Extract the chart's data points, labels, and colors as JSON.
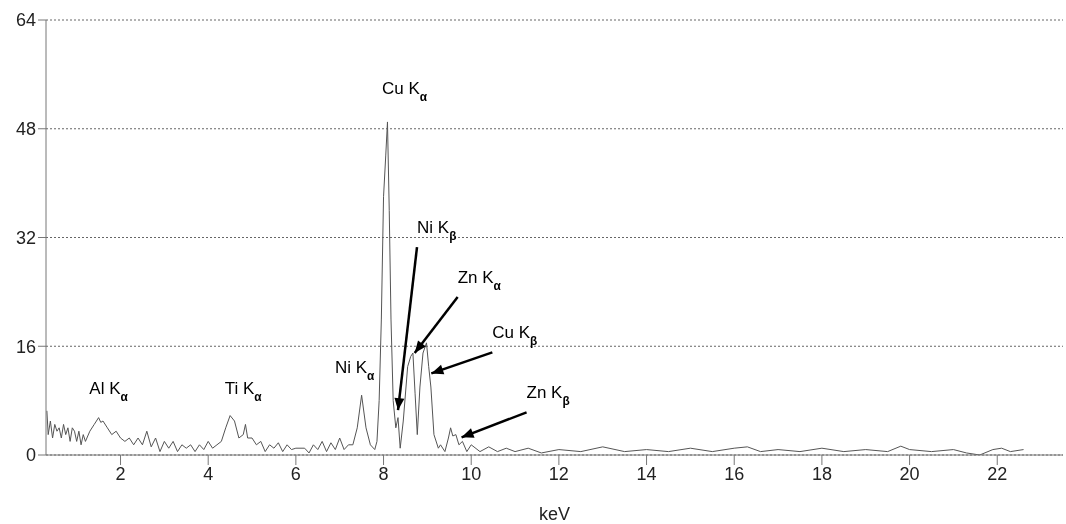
{
  "chart_data": {
    "type": "line",
    "xlabel": "keV",
    "x": [
      0.32,
      0.35,
      0.4,
      0.45,
      0.5,
      0.55,
      0.6,
      0.65,
      0.7,
      0.75,
      0.8,
      0.85,
      0.9,
      0.95,
      1.0,
      1.05,
      1.1,
      1.15,
      1.2,
      1.3,
      1.4,
      1.5,
      1.55,
      1.6,
      1.7,
      1.8,
      1.9,
      2.0,
      2.1,
      2.2,
      2.3,
      2.4,
      2.5,
      2.6,
      2.7,
      2.8,
      2.9,
      3.0,
      3.1,
      3.2,
      3.3,
      3.4,
      3.5,
      3.6,
      3.7,
      3.8,
      3.9,
      4.0,
      4.1,
      4.2,
      4.3,
      4.4,
      4.5,
      4.6,
      4.7,
      4.8,
      4.85,
      4.9,
      5.0,
      5.1,
      5.2,
      5.3,
      5.4,
      5.5,
      5.6,
      5.7,
      5.8,
      5.9,
      6.0,
      6.2,
      6.3,
      6.4,
      6.5,
      6.6,
      6.7,
      6.8,
      6.9,
      7.0,
      7.1,
      7.2,
      7.3,
      7.4,
      7.5,
      7.6,
      7.7,
      7.8,
      7.85,
      7.9,
      7.95,
      8.0,
      8.05,
      8.09,
      8.13,
      8.17,
      8.22,
      8.28,
      8.33,
      8.38,
      8.45,
      8.55,
      8.62,
      8.67,
      8.72,
      8.77,
      8.83,
      8.9,
      8.98,
      9.03,
      9.08,
      9.15,
      9.25,
      9.3,
      9.4,
      9.48,
      9.53,
      9.58,
      9.65,
      9.72,
      9.8,
      9.9,
      10.0,
      10.2,
      10.4,
      10.6,
      10.8,
      11.0,
      11.3,
      11.6,
      12.0,
      12.5,
      13.0,
      13.5,
      14.0,
      14.5,
      15.0,
      15.5,
      16.0,
      16.3,
      16.6,
      17.0,
      17.5,
      18.0,
      18.5,
      19.0,
      19.5,
      19.8,
      20.0,
      20.5,
      21.0,
      21.3,
      21.6,
      21.9,
      22.1,
      22.3,
      22.6
    ],
    "series": [
      {
        "color": "#555555",
        "values": [
          6.5,
          3,
          5,
          2.5,
          4.5,
          3.5,
          4,
          2.5,
          4.5,
          3,
          4,
          2,
          4,
          3.5,
          2,
          3.5,
          1.5,
          3,
          2,
          3.5,
          4.5,
          5.5,
          4.8,
          5,
          4,
          3,
          3.5,
          2.5,
          2,
          2.5,
          1.5,
          2.5,
          1.5,
          3.5,
          1.2,
          2.5,
          0.5,
          2,
          1,
          2,
          0.5,
          1.5,
          1,
          1.5,
          0.5,
          1.5,
          0.8,
          2,
          1,
          1.5,
          2,
          4,
          5.8,
          5,
          2.5,
          3,
          4.5,
          2.5,
          2.5,
          1.5,
          2,
          0.5,
          1.5,
          1,
          1.8,
          0.5,
          1.5,
          0.8,
          1,
          1,
          0.3,
          1.5,
          0.8,
          2,
          0.5,
          1.8,
          0.8,
          2.5,
          0.8,
          1.5,
          1.5,
          4,
          8.8,
          4,
          1.5,
          0.8,
          2,
          8,
          20,
          38,
          44,
          49,
          36,
          20,
          8,
          4,
          5.5,
          1,
          5,
          13,
          14.5,
          15,
          9,
          3,
          10,
          15,
          16.5,
          13,
          10,
          3,
          1,
          1.5,
          0.5,
          2.5,
          4,
          2.8,
          3,
          1.5,
          2,
          0.5,
          1.5,
          0.5,
          1.2,
          0.5,
          1,
          0.5,
          1,
          0.3,
          0.8,
          0.5,
          1.2,
          0.5,
          0.8,
          0.5,
          1,
          0.5,
          1,
          1.2,
          0.5,
          0.8,
          0.5,
          1,
          0.5,
          0.8,
          0.5,
          1.3,
          0.8,
          0.5,
          0.8,
          0.3,
          0,
          0.8,
          1,
          0.5,
          0.8
        ]
      }
    ],
    "xlim": [
      0.3,
      23.5
    ],
    "xticks": [
      2,
      4,
      6,
      8,
      10,
      12,
      14,
      16,
      18,
      20,
      22
    ],
    "ylim": [
      0,
      64
    ],
    "yticks": [
      0,
      16,
      32,
      48,
      64
    ],
    "grid": "y",
    "marker": "none",
    "line_style": "solid",
    "annotations": [
      {
        "text": "Al K$_{α}$",
        "x": 1.5,
        "y": 5.5
      },
      {
        "text": "Ti K$_{α}$",
        "x": 4.5,
        "y": 5.8
      },
      {
        "text": "Ni K$_{α}$",
        "x": 7.5,
        "y": 8.8
      },
      {
        "text": "Cu K$_{α}$",
        "x": 8.09,
        "y": 49
      },
      {
        "text": "Ni K$_{β}$",
        "x": 8.33,
        "y": 6.6
      },
      {
        "text": "Zn K$_{α}$",
        "x": 8.71,
        "y": 15
      },
      {
        "text": "Cu K$_{β}$",
        "x": 9.09,
        "y": 12
      },
      {
        "text": "Zn K$_{β}$",
        "x": 9.78,
        "y": 2.6
      }
    ]
  }
}
